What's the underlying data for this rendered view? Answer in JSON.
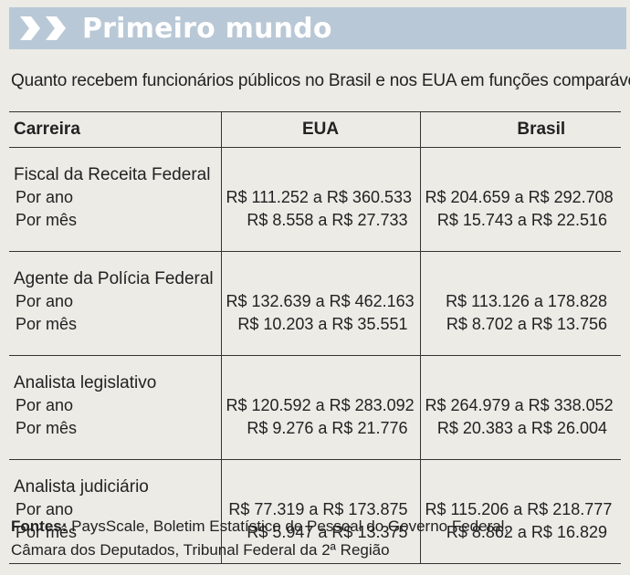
{
  "header": {
    "title": "Primeiro mundo",
    "colors": {
      "banner_bg": "#b9c8d6",
      "banner_text": "#ffffff",
      "page_bg": "#ecebe6"
    }
  },
  "subtitle": "Quanto recebem funcionários públicos no Brasil e nos EUA em funções comparáveis",
  "table": {
    "columns": [
      "Carreira",
      "EUA",
      "Brasil"
    ],
    "rows": [
      {
        "career": "Fiscal da Receita Federal",
        "year_label": "Por ano",
        "month_label": "Por mês",
        "eua": {
          "year": "R$ 111.252 a R$ 360.533",
          "month": "R$ 8.558 a R$ 27.733"
        },
        "brasil": {
          "year": "R$ 204.659 a R$ 292.708",
          "month": "R$ 15.743 a R$ 22.516"
        }
      },
      {
        "career": "Agente da Polícia Federal",
        "year_label": "Por ano",
        "month_label": "Por mês",
        "eua": {
          "year": "R$ 132.639 a R$ 462.163",
          "month": "R$ 10.203 a R$ 35.551"
        },
        "brasil": {
          "year": "R$ 113.126 a 178.828",
          "month": "R$ 8.702 a R$ 13.756"
        }
      },
      {
        "career": "Analista legislativo",
        "year_label": "Por ano",
        "month_label": "Por mês",
        "eua": {
          "year": "R$ 120.592 a R$ 283.092",
          "month": "R$ 9.276 a R$ 21.776"
        },
        "brasil": {
          "year": "R$ 264.979 a R$ 338.052",
          "month": "R$ 20.383 a R$ 26.004"
        }
      },
      {
        "career": "Analista judiciário",
        "year_label": "Por ano",
        "month_label": "Por mês",
        "eua": {
          "year": "R$ 77.319 a R$ 173.875",
          "month": "R$ 5.947 a R$ 13.375"
        },
        "brasil": {
          "year": "R$ 115.206 a R$ 218.777",
          "month": "R$ 8.862 a R$ 16.829"
        }
      }
    ]
  },
  "sources": {
    "label": "Fontes:",
    "line1": " PaysScale, Boletim Estatístico de Pessoal do Governo Federal,",
    "line2": "Câmara dos Deputados, Tribunal Federal da 2ª Região"
  }
}
